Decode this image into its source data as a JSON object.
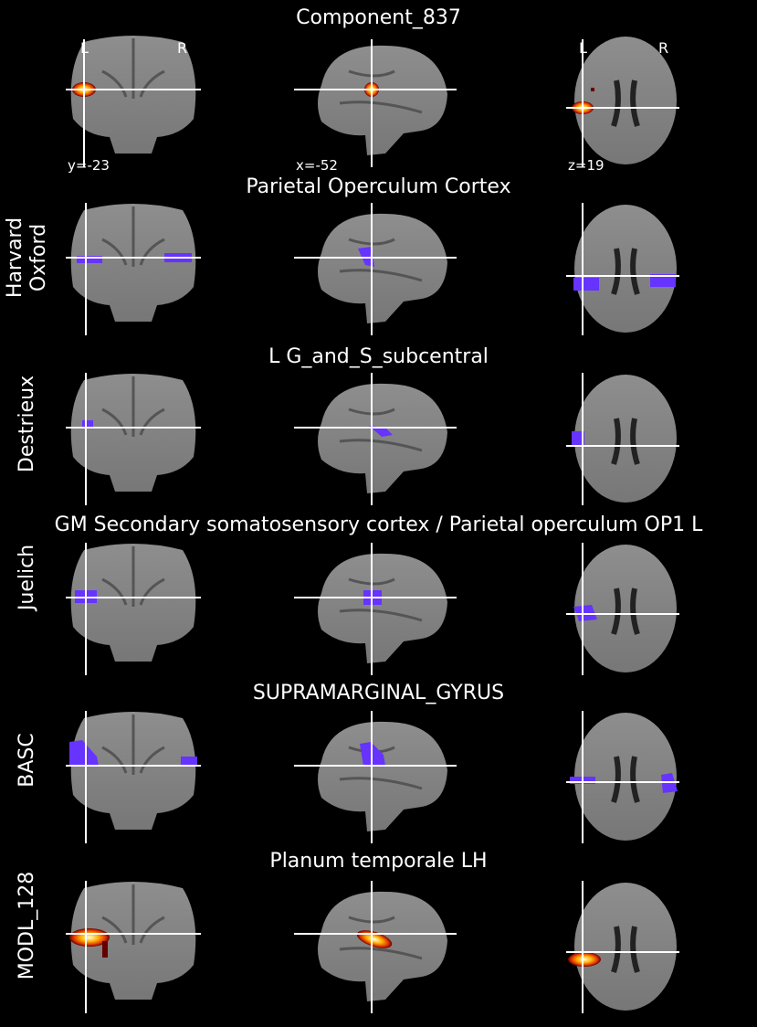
{
  "colors": {
    "background": "#000000",
    "crosshair": "#ffffff",
    "atlas_overlay": "#6633ff",
    "heat_core": "#ffffe0",
    "heat_mid": "#ffa000",
    "heat_edge": "#cc2200"
  },
  "header": {
    "title": "Component_837",
    "coronal_left_label": "L",
    "coronal_right_label": "R",
    "axial_left_label": "L",
    "axial_right_label": "R",
    "coronal_coord": "y=-23",
    "sagittal_coord": "x=-52",
    "axial_coord": "z=19"
  },
  "rows": [
    {
      "atlas": "",
      "title": "Component_837",
      "overlay": "heat"
    },
    {
      "atlas": "Harvard\nOxford",
      "title": "Parietal Operculum Cortex",
      "overlay": "atlas"
    },
    {
      "atlas": "Destrieux",
      "title": "L G_and_S_subcentral",
      "overlay": "atlas"
    },
    {
      "atlas": "Juelich",
      "title": "GM Secondary somatosensory cortex / Parietal operculum OP1 L",
      "overlay": "atlas"
    },
    {
      "atlas": "BASC",
      "title": "SUPRAMARGINAL_GYRUS",
      "overlay": "atlas"
    },
    {
      "atlas": "MODL_128",
      "title": "Planum temporale LH",
      "overlay": "heat"
    }
  ]
}
